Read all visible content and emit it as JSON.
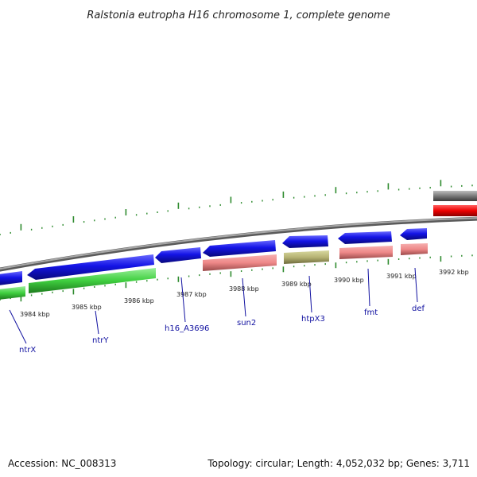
{
  "title": "Ralstonia eutropha H16 chromosome 1, complete genome",
  "footer": {
    "accession": "Accession: NC_008313",
    "summary": "Topology: circular; Length: 4,052,032 bp; Genes: 3,711"
  },
  "colors": {
    "tick": "#2e8b2e",
    "backbone": "#888888",
    "cds_forward": "#1414e6",
    "cds_reverse": "#1414e6",
    "label": "#1010a0"
  },
  "kbp_labels": [
    "3984 kbp",
    "3985 kbp",
    "3986 kbp",
    "3987 kbp",
    "3988 kbp",
    "3989 kbp",
    "3990 kbp",
    "3991 kbp",
    "3992 kbp"
  ],
  "genes": [
    "ntrX",
    "ntrY",
    "h16_A3696",
    "sun2",
    "htpX3",
    "fmt",
    "def"
  ]
}
